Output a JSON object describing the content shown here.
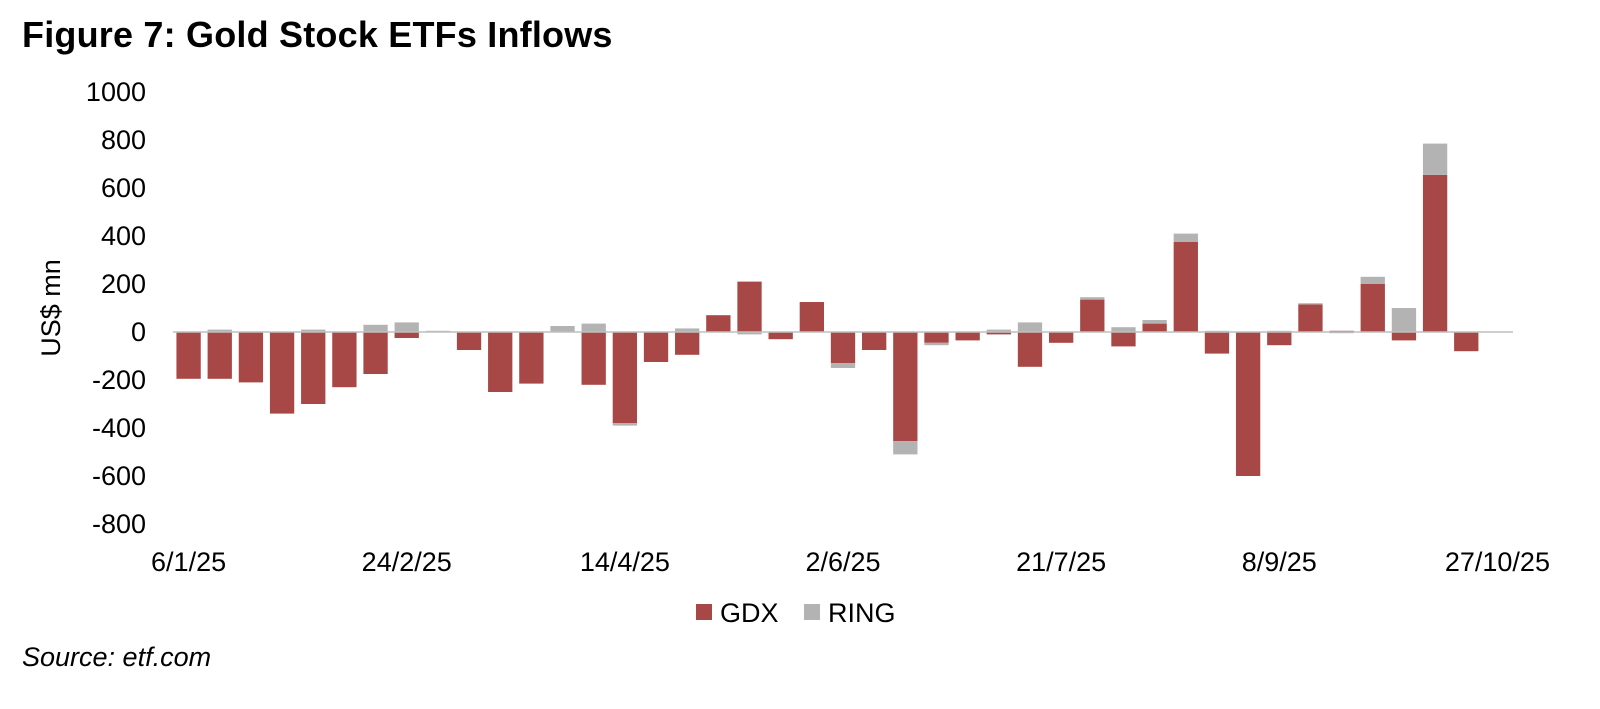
{
  "header": {
    "title": "Figure 7: Gold Stock ETFs Inflows"
  },
  "footer": {
    "source": "Source: etf.com"
  },
  "chart_data": {
    "type": "bar",
    "stacked": true,
    "title": "Figure 7: Gold Stock ETFs Inflows",
    "xlabel": "",
    "ylabel": "US$ mn",
    "ylim": [
      -800,
      1000
    ],
    "yticks": [
      1000,
      800,
      600,
      400,
      200,
      0,
      -200,
      -400,
      -600,
      -800
    ],
    "grid": false,
    "legend_position": "bottom-center",
    "colors": {
      "GDX": "#a84846",
      "RING": "#b3b3b3"
    },
    "x_tick_labels": [
      {
        "index": 0,
        "label": "6/1/25"
      },
      {
        "index": 7,
        "label": "24/2/25"
      },
      {
        "index": 14,
        "label": "14/4/25"
      },
      {
        "index": 21,
        "label": "2/6/25"
      },
      {
        "index": 28,
        "label": "21/7/25"
      },
      {
        "index": 35,
        "label": "8/9/25"
      },
      {
        "index": 42,
        "label": "27/10/25"
      }
    ],
    "categories": [
      "6/1/25",
      "13/1/25",
      "20/1/25",
      "27/1/25",
      "3/2/25",
      "10/2/25",
      "17/2/25",
      "24/2/25",
      "3/3/25",
      "10/3/25",
      "17/3/25",
      "24/3/25",
      "31/3/25",
      "7/4/25",
      "14/4/25",
      "21/4/25",
      "28/4/25",
      "5/5/25",
      "12/5/25",
      "19/5/25",
      "26/5/25",
      "2/6/25",
      "9/6/25",
      "16/6/25",
      "23/6/25",
      "30/6/25",
      "7/7/25",
      "14/7/25",
      "21/7/25",
      "28/7/25",
      "4/8/25",
      "11/8/25",
      "18/8/25",
      "25/8/25",
      "1/9/25",
      "8/9/25",
      "15/9/25",
      "22/9/25",
      "29/9/25",
      "6/10/25",
      "13/10/25",
      "20/10/25",
      "27/10/25"
    ],
    "series": [
      {
        "name": "GDX",
        "values": [
          -195,
          -195,
          -210,
          -340,
          -300,
          -230,
          -175,
          -25,
          0,
          -75,
          -250,
          -215,
          0,
          -220,
          -380,
          -125,
          -95,
          70,
          210,
          -30,
          125,
          -130,
          -75,
          -455,
          -45,
          -35,
          -10,
          -145,
          -45,
          135,
          -60,
          35,
          375,
          -90,
          -600,
          -55,
          115,
          5,
          200,
          -35,
          655,
          -80,
          0
        ]
      },
      {
        "name": "RING",
        "values": [
          0,
          10,
          0,
          0,
          10,
          0,
          30,
          40,
          5,
          0,
          0,
          0,
          25,
          35,
          -10,
          0,
          15,
          0,
          -10,
          0,
          0,
          -20,
          0,
          -55,
          -10,
          0,
          10,
          40,
          0,
          10,
          20,
          15,
          35,
          5,
          0,
          5,
          5,
          -5,
          30,
          100,
          130,
          0,
          0
        ]
      }
    ]
  }
}
